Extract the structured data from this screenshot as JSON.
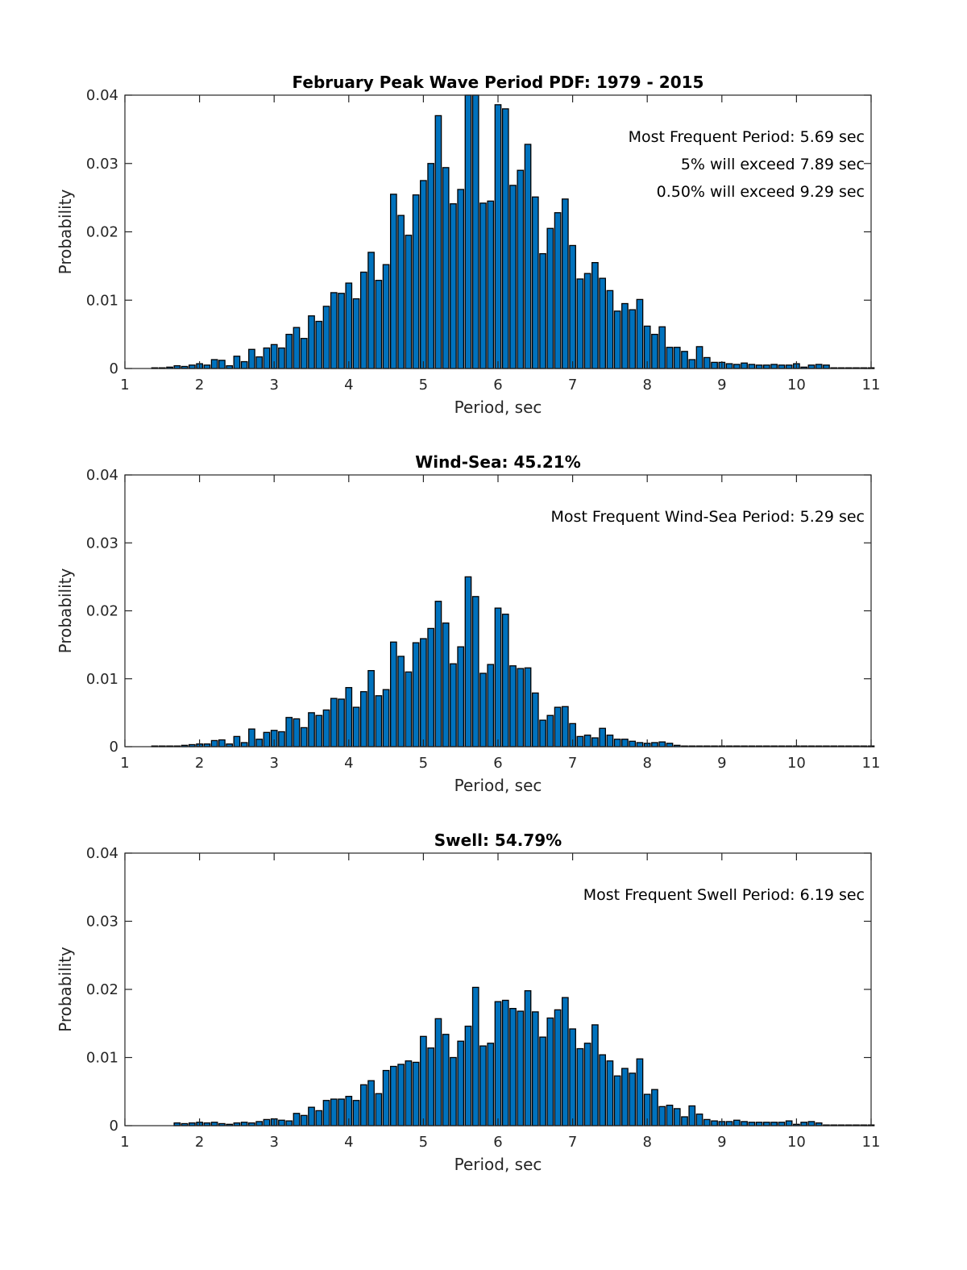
{
  "chart_data": [
    {
      "type": "bar",
      "title": "February Peak Wave Period PDF: 1979 - 2015",
      "xlabel": "Period, sec",
      "ylabel": "Probability",
      "xlim": [
        1,
        11
      ],
      "ylim": [
        0,
        0.04
      ],
      "xticks": [
        1,
        2,
        3,
        4,
        5,
        6,
        7,
        8,
        9,
        10,
        11
      ],
      "xtick_labels": [
        "1",
        "2",
        "3",
        "4",
        "5",
        "6",
        "7",
        "8",
        "9",
        "10",
        "11"
      ],
      "yticks": [
        0,
        0.01,
        0.02,
        0.03,
        0.04
      ],
      "ytick_labels": [
        "0",
        "0.01",
        "0.02",
        "0.03",
        "0.04"
      ],
      "bar_color": "#0072BD",
      "grid": false,
      "annotations": [
        "Most Frequent Period: 5.69 sec",
        "5% will exceed 7.89 sec",
        "0.50% will exceed 9.29 sec"
      ],
      "x_start": 1.4,
      "x_step": 0.1,
      "values": [
        0.0001,
        0.0001,
        0.0002,
        0.0004,
        0.0003,
        0.0005,
        0.0007,
        0.0005,
        0.0013,
        0.0012,
        0.0004,
        0.0018,
        0.001,
        0.0028,
        0.0017,
        0.003,
        0.0035,
        0.003,
        0.005,
        0.006,
        0.0044,
        0.0077,
        0.0069,
        0.0091,
        0.0111,
        0.011,
        0.0125,
        0.0102,
        0.0141,
        0.017,
        0.0129,
        0.0152,
        0.0255,
        0.0224,
        0.0195,
        0.0254,
        0.0275,
        0.03,
        0.037,
        0.0294,
        0.0241,
        0.0262,
        0.0405,
        0.04,
        0.0242,
        0.0245,
        0.0386,
        0.038,
        0.0268,
        0.029,
        0.0328,
        0.0251,
        0.0168,
        0.0205,
        0.0228,
        0.0248,
        0.018,
        0.0131,
        0.0139,
        0.0155,
        0.0132,
        0.0114,
        0.0084,
        0.0095,
        0.0086,
        0.0101,
        0.0062,
        0.005,
        0.0061,
        0.0031,
        0.0031,
        0.0025,
        0.0013,
        0.0032,
        0.0016,
        0.0009,
        0.0009,
        0.0007,
        0.0006,
        0.0008,
        0.0006,
        0.0005,
        0.0005,
        0.0006,
        0.0005,
        0.0005,
        0.0007,
        0.0002,
        0.0005,
        0.0006,
        0.0005,
        0.0001,
        0.0001,
        0.0001,
        0.0001,
        0.0001,
        0.0001
      ]
    },
    {
      "type": "bar",
      "title": "Wind-Sea: 45.21%",
      "xlabel": "Period, sec",
      "ylabel": "Probability",
      "xlim": [
        1,
        11
      ],
      "ylim": [
        0,
        0.04
      ],
      "xticks": [
        1,
        2,
        3,
        4,
        5,
        6,
        7,
        8,
        9,
        10,
        11
      ],
      "xtick_labels": [
        "1",
        "2",
        "3",
        "4",
        "5",
        "6",
        "7",
        "8",
        "9",
        "10",
        "11"
      ],
      "yticks": [
        0,
        0.01,
        0.02,
        0.03,
        0.04
      ],
      "ytick_labels": [
        "0",
        "0.01",
        "0.02",
        "0.03",
        "0.04"
      ],
      "bar_color": "#0072BD",
      "grid": false,
      "annotations": [
        "Most Frequent Wind-Sea Period: 5.29 sec"
      ],
      "x_start": 1.4,
      "x_step": 0.1,
      "values": [
        0.0001,
        0.0001,
        0.0001,
        0.0001,
        0.0002,
        0.0003,
        0.0004,
        0.0004,
        0.0009,
        0.001,
        0.0004,
        0.0015,
        0.0006,
        0.0026,
        0.0011,
        0.0021,
        0.0024,
        0.0022,
        0.0043,
        0.0041,
        0.0028,
        0.005,
        0.0046,
        0.0054,
        0.0071,
        0.007,
        0.0087,
        0.0058,
        0.0081,
        0.0112,
        0.0075,
        0.0084,
        0.0154,
        0.0133,
        0.011,
        0.0153,
        0.0159,
        0.0174,
        0.0214,
        0.0182,
        0.0122,
        0.0147,
        0.025,
        0.0221,
        0.0108,
        0.0121,
        0.0204,
        0.0195,
        0.0119,
        0.0115,
        0.0116,
        0.0079,
        0.0039,
        0.0046,
        0.0058,
        0.0059,
        0.0034,
        0.0015,
        0.0017,
        0.0013,
        0.0027,
        0.0017,
        0.0011,
        0.0011,
        0.0008,
        0.0006,
        0.0005,
        0.0006,
        0.0007,
        0.0005,
        0.0002,
        0.0001,
        0.0001,
        0.0001,
        0.0001,
        0.0001,
        0.0001,
        0.0001,
        0.0001,
        0.0001,
        0.0001,
        0.0001,
        0.0001,
        0.0001,
        0.0001,
        0.0001,
        0.0001,
        0.0001,
        0.0001,
        0.0001,
        0.0001,
        0.0001,
        0.0001,
        0.0001,
        0.0001,
        0.0001,
        0.0001
      ]
    },
    {
      "type": "bar",
      "title": "Swell: 54.79%",
      "xlabel": "Period, sec",
      "ylabel": "Probability",
      "xlim": [
        1,
        11
      ],
      "ylim": [
        0,
        0.04
      ],
      "xticks": [
        1,
        2,
        3,
        4,
        5,
        6,
        7,
        8,
        9,
        10,
        11
      ],
      "xtick_labels": [
        "1",
        "2",
        "3",
        "4",
        "5",
        "6",
        "7",
        "8",
        "9",
        "10",
        "11"
      ],
      "yticks": [
        0,
        0.01,
        0.02,
        0.03,
        0.04
      ],
      "ytick_labels": [
        "0",
        "0.01",
        "0.02",
        "0.03",
        "0.04"
      ],
      "bar_color": "#0072BD",
      "grid": false,
      "annotations": [
        "Most Frequent Swell Period: 6.19 sec"
      ],
      "x_start": 1.7,
      "x_step": 0.1,
      "values": [
        0.0004,
        0.0003,
        0.0004,
        0.0005,
        0.0004,
        0.0005,
        0.0003,
        0.0002,
        0.0004,
        0.0005,
        0.0004,
        0.0006,
        0.0009,
        0.001,
        0.0008,
        0.0007,
        0.0018,
        0.0015,
        0.0027,
        0.0022,
        0.0037,
        0.0039,
        0.0039,
        0.0043,
        0.0037,
        0.006,
        0.0066,
        0.0047,
        0.0081,
        0.0087,
        0.009,
        0.0095,
        0.0093,
        0.0131,
        0.0114,
        0.0157,
        0.0134,
        0.01,
        0.0124,
        0.0146,
        0.0203,
        0.0117,
        0.0121,
        0.0182,
        0.0184,
        0.0172,
        0.0168,
        0.0198,
        0.0167,
        0.013,
        0.0158,
        0.017,
        0.0188,
        0.0142,
        0.0113,
        0.0121,
        0.0148,
        0.0104,
        0.0095,
        0.0073,
        0.0084,
        0.0077,
        0.0098,
        0.0046,
        0.0053,
        0.0028,
        0.003,
        0.0025,
        0.0013,
        0.0029,
        0.0017,
        0.0009,
        0.0007,
        0.0006,
        0.0006,
        0.0008,
        0.0006,
        0.0005,
        0.0005,
        0.0005,
        0.0005,
        0.0005,
        0.0007,
        0.0002,
        0.0005,
        0.0006,
        0.0004,
        0.0001,
        0.0001,
        0.0001,
        0.0001,
        0.0001,
        0.0001,
        0.0001
      ]
    }
  ]
}
